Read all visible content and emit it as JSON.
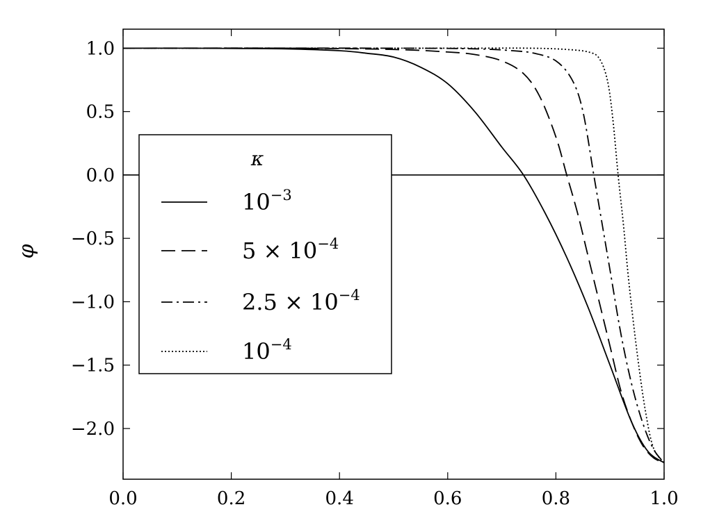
{
  "chart_data": {
    "type": "line",
    "xlabel": "",
    "ylabel": "φ",
    "xlim": [
      0.0,
      1.0
    ],
    "ylim": [
      -2.4,
      1.15
    ],
    "grid": false,
    "x_ticks": [
      "0.0",
      "0.2",
      "0.4",
      "0.6",
      "0.8",
      "1.0"
    ],
    "y_ticks": [
      "1.0",
      "0.5",
      "0.0",
      "−0.5",
      "−1.0",
      "−1.5",
      "−2.0"
    ],
    "x_tick_values": [
      0.0,
      0.2,
      0.4,
      0.6,
      0.8,
      1.0
    ],
    "y_tick_values": [
      1.0,
      0.5,
      0.0,
      -0.5,
      -1.0,
      -1.5,
      -2.0
    ],
    "reference_line_y": 0.0,
    "legend": {
      "title": "κ",
      "placement": "center-left",
      "entries": [
        {
          "main": "10",
          "sup": "−3"
        },
        {
          "main": "5 × 10",
          "sup": "−4"
        },
        {
          "main": "2.5 × 10",
          "sup": "−4"
        },
        {
          "main": "10",
          "sup": "−4"
        }
      ]
    },
    "series": [
      {
        "name": "10⁻³",
        "style": "solid",
        "x": [
          0.0,
          0.1,
          0.2,
          0.3,
          0.4,
          0.45,
          0.5,
          0.55,
          0.6,
          0.65,
          0.7,
          0.74,
          0.78,
          0.82,
          0.86,
          0.9,
          0.94,
          0.97,
          1.0
        ],
        "y": [
          1.0,
          1.0,
          0.998,
          0.995,
          0.98,
          0.96,
          0.93,
          0.85,
          0.72,
          0.5,
          0.22,
          0.0,
          -0.3,
          -0.65,
          -1.05,
          -1.5,
          -1.95,
          -2.18,
          -2.27
        ]
      },
      {
        "name": "5 × 10⁻⁴",
        "style": "dashed",
        "x": [
          0.0,
          0.3,
          0.5,
          0.6,
          0.65,
          0.7,
          0.74,
          0.77,
          0.8,
          0.82,
          0.84,
          0.86,
          0.88,
          0.9,
          0.92,
          0.94,
          0.96,
          0.98,
          1.0
        ],
        "y": [
          1.0,
          1.0,
          0.99,
          0.97,
          0.95,
          0.9,
          0.8,
          0.62,
          0.3,
          0.0,
          -0.3,
          -0.65,
          -1.0,
          -1.35,
          -1.7,
          -1.95,
          -2.13,
          -2.23,
          -2.27
        ]
      },
      {
        "name": "2.5 × 10⁻⁴",
        "style": "dashdot",
        "x": [
          0.0,
          0.5,
          0.65,
          0.72,
          0.76,
          0.8,
          0.83,
          0.85,
          0.87,
          0.88,
          0.9,
          0.92,
          0.94,
          0.96,
          0.98,
          1.0
        ],
        "y": [
          1.0,
          1.0,
          0.995,
          0.98,
          0.96,
          0.9,
          0.75,
          0.5,
          0.0,
          -0.25,
          -0.75,
          -1.25,
          -1.65,
          -1.95,
          -2.16,
          -2.27
        ]
      },
      {
        "name": "10⁻⁴",
        "style": "dotted",
        "x": [
          0.0,
          0.6,
          0.75,
          0.82,
          0.86,
          0.88,
          0.895,
          0.905,
          0.915,
          0.925,
          0.935,
          0.95,
          0.965,
          0.98,
          1.0
        ],
        "y": [
          1.0,
          1.0,
          1.0,
          0.99,
          0.97,
          0.92,
          0.75,
          0.45,
          0.0,
          -0.4,
          -0.85,
          -1.4,
          -1.85,
          -2.15,
          -2.27
        ]
      }
    ]
  }
}
